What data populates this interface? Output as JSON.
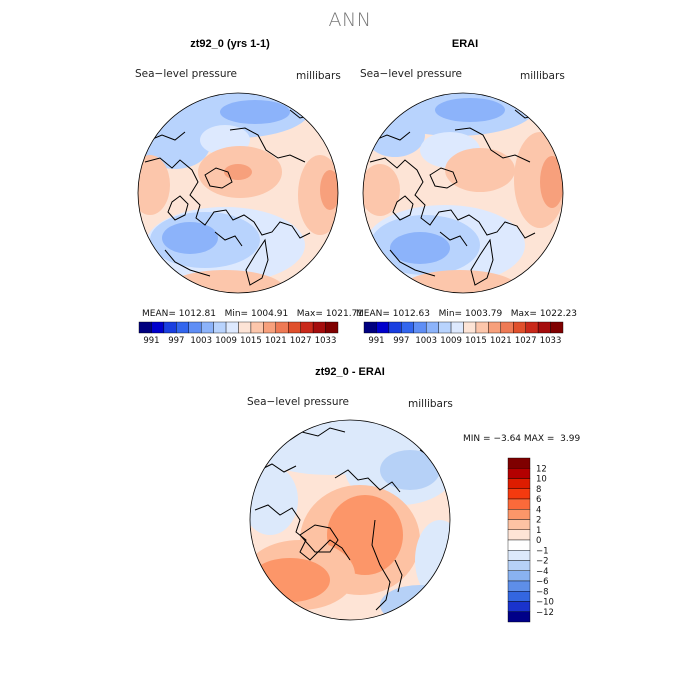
{
  "page_title": "ANN",
  "panels": [
    {
      "title": "zt92_0 (yrs 1-1)",
      "left_label": "Sea−level pressure",
      "right_label": "millibars",
      "stats": {
        "mean_label": "MEAN=",
        "mean": "1012.81",
        "min_label": "Min=",
        "min": "1004.91",
        "max_label": "Max=",
        "max": "1021.71"
      }
    },
    {
      "title": "ERAI",
      "left_label": "Sea−level pressure",
      "right_label": "millibars",
      "stats": {
        "mean_label": "MEAN=",
        "mean": "1012.63",
        "min_label": "Min=",
        "min": "1003.79",
        "max_label": "Max=",
        "max": "1022.23"
      }
    },
    {
      "title": "zt92_0 - ERAI",
      "left_label": "Sea−level pressure",
      "right_label": "millibars",
      "stats": {
        "min_label": "MIN =",
        "min": "−3.64",
        "max_label": "MAX =",
        "max": "3.99"
      }
    }
  ],
  "chart_data": [
    {
      "type": "heatmap",
      "projection": "polar-stereographic north",
      "title": "zt92_0 (yrs 1-1)",
      "variable": "Sea−level pressure",
      "units": "millibars",
      "mean": 1012.81,
      "min": 1004.91,
      "max": 1021.71,
      "colorbar": {
        "orientation": "horizontal",
        "levels": [
          991,
          997,
          1003,
          1009,
          1015,
          1021,
          1027,
          1033
        ],
        "colors": [
          "#00007f",
          "#0000cc",
          "#1a3fe0",
          "#3366ee",
          "#5f8ef5",
          "#8cb3fa",
          "#b8d3fd",
          "#dde9fe",
          "#fde4d6",
          "#fcc6ab",
          "#f7a07c",
          "#ee7a55",
          "#e0502c",
          "#c9291a",
          "#a50d0d",
          "#7f0000"
        ]
      }
    },
    {
      "type": "heatmap",
      "projection": "polar-stereographic north",
      "title": "ERAI",
      "variable": "Sea−level pressure",
      "units": "millibars",
      "mean": 1012.63,
      "min": 1003.79,
      "max": 1022.23,
      "colorbar": {
        "orientation": "horizontal",
        "levels": [
          991,
          997,
          1003,
          1009,
          1015,
          1021,
          1027,
          1033
        ]
      }
    },
    {
      "type": "heatmap",
      "projection": "polar-stereographic north",
      "title": "zt92_0 - ERAI",
      "variable": "Sea−level pressure",
      "units": "millibars",
      "min": -3.64,
      "max": 3.99,
      "colorbar": {
        "orientation": "vertical",
        "levels": [
          12,
          10,
          8,
          6,
          4,
          2,
          1,
          0,
          -1,
          -2,
          -4,
          -6,
          -8,
          -10,
          -12
        ],
        "colors": [
          "#7f0000",
          "#b30000",
          "#dd1c00",
          "#f43a0f",
          "#fb6a3a",
          "#fc9669",
          "#fdc2a3",
          "#fee4d6",
          "#ffffff",
          "#dce9fb",
          "#b6d1f7",
          "#89b2f0",
          "#5e8ee8",
          "#3366e0",
          "#1a33cc",
          "#000088"
        ]
      }
    }
  ],
  "colors": {
    "title_gray": "#777777",
    "coast": "#000000"
  }
}
